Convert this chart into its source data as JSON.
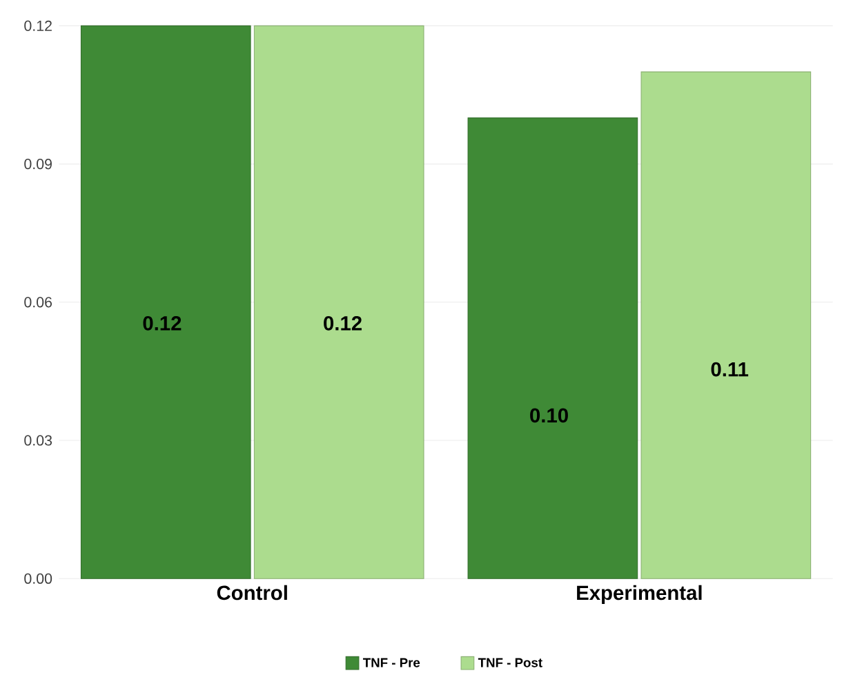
{
  "chart_data": {
    "type": "bar",
    "categories": [
      "Control",
      "Experimental"
    ],
    "series": [
      {
        "name": "TNF - Pre",
        "color": "#3f8a36",
        "values": [
          0.12,
          0.1
        ],
        "value_labels": [
          "0.12",
          "0.10"
        ]
      },
      {
        "name": "TNF - Post",
        "color": "#acdc8e",
        "values": [
          0.12,
          0.11
        ],
        "value_labels": [
          "0.12",
          "0.11"
        ]
      }
    ],
    "ylim": [
      0,
      0.12
    ],
    "yticks": [
      {
        "value": 0,
        "label": "0.00"
      },
      0.03,
      0.06,
      0.09,
      0.12
    ],
    "grid": "y",
    "legend": "bottom"
  }
}
